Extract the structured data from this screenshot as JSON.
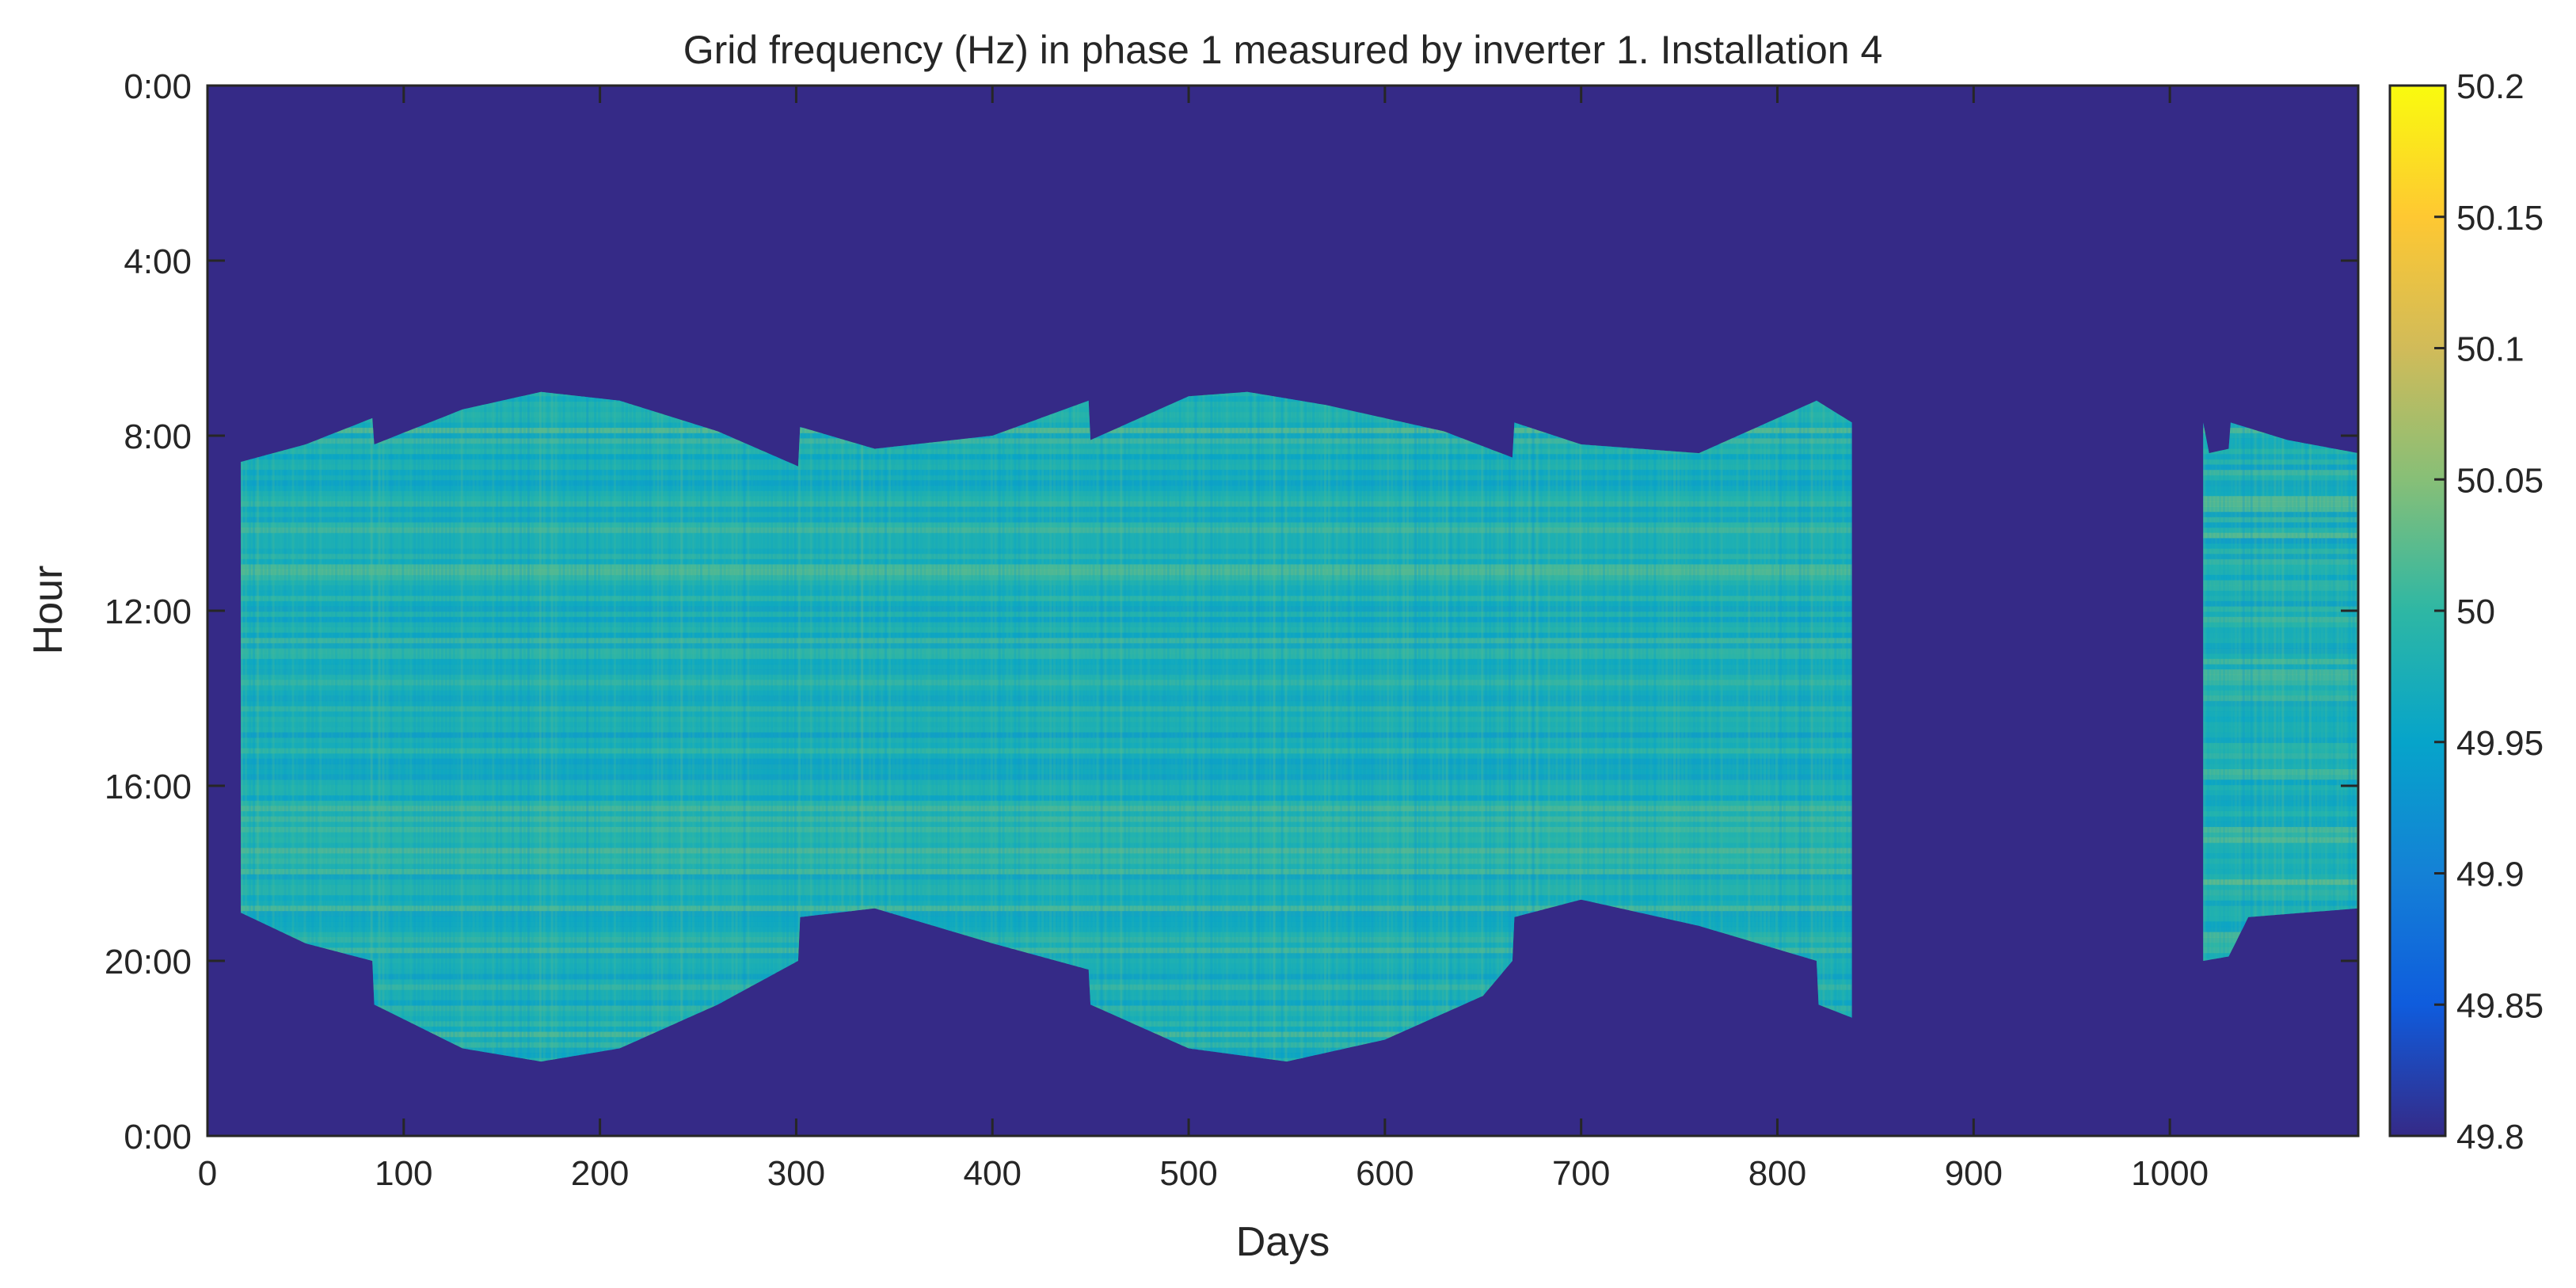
{
  "chart_data": {
    "type": "heatmap",
    "title": "Grid frequency (Hz) in phase 1 measured by inverter 1. Installation 4",
    "xlabel": "Days",
    "ylabel": "Hour",
    "xlim": [
      0,
      1096
    ],
    "ylim_hours": [
      0,
      24
    ],
    "y_direction": "reversed",
    "x_ticks": [
      0,
      100,
      200,
      300,
      400,
      500,
      600,
      700,
      800,
      900,
      1000
    ],
    "y_ticks": [
      "0:00",
      "4:00",
      "8:00",
      "12:00",
      "16:00",
      "20:00",
      "0:00"
    ],
    "y_tick_hours": [
      0,
      4,
      8,
      12,
      16,
      20,
      24
    ],
    "colorbar": {
      "colormap": "parula",
      "clim": [
        49.8,
        50.2
      ],
      "ticks": [
        "49.8",
        "49.85",
        "49.9",
        "49.95",
        "50",
        "50.05",
        "50.1",
        "50.15",
        "50.2"
      ],
      "tick_values": [
        49.8,
        49.85,
        49.9,
        49.95,
        50.0,
        50.05,
        50.1,
        50.15,
        50.2
      ]
    },
    "background_value": 49.8,
    "typical_value_range": [
      49.93,
      50.03
    ],
    "data_segments": [
      {
        "day_start": 17,
        "day_end": 838
      },
      {
        "day_start": 1017,
        "day_end": 1096
      }
    ],
    "sunrise_hour_envelope": {
      "days": [
        17,
        50,
        84,
        85,
        130,
        170,
        210,
        260,
        301,
        302,
        340,
        400,
        449,
        450,
        500,
        530,
        570,
        630,
        665,
        666,
        700,
        760,
        820,
        838,
        1017,
        1020,
        1030,
        1031,
        1060,
        1096
      ],
      "hours": [
        8.6,
        8.2,
        7.6,
        8.2,
        7.4,
        7.0,
        7.2,
        7.9,
        8.7,
        7.8,
        8.3,
        8.0,
        7.2,
        8.1,
        7.1,
        7.0,
        7.3,
        7.9,
        8.5,
        7.7,
        8.2,
        8.4,
        7.2,
        7.7,
        7.7,
        8.4,
        8.3,
        7.7,
        8.1,
        8.4
      ]
    },
    "sunset_hour_envelope": {
      "days": [
        17,
        50,
        84,
        85,
        130,
        170,
        210,
        260,
        301,
        302,
        340,
        400,
        449,
        450,
        500,
        550,
        600,
        650,
        665,
        666,
        700,
        760,
        820,
        821,
        838,
        1017,
        1030,
        1040,
        1096
      ],
      "hours": [
        18.9,
        19.6,
        20.0,
        21.0,
        22.0,
        22.3,
        22.0,
        21.0,
        20.0,
        19.0,
        18.8,
        19.6,
        20.2,
        21.0,
        22.0,
        22.3,
        21.8,
        20.8,
        20.0,
        19.0,
        18.6,
        19.2,
        20.0,
        21.0,
        21.3,
        20.0,
        19.9,
        19.0,
        18.8
      ]
    }
  }
}
